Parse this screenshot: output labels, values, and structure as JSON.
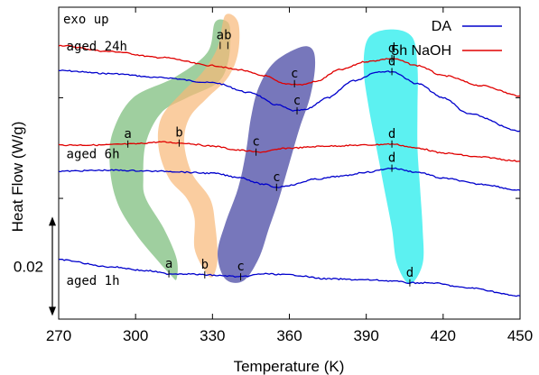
{
  "chart_data": {
    "type": "line",
    "xlabel": "Temperature (K)",
    "ylabel": "Heat Flow (W/g)",
    "xlim": [
      270,
      450
    ],
    "xticks": [
      "270",
      "300",
      "330",
      "360",
      "390",
      "420",
      "450"
    ],
    "ylim": [
      -2.2,
      0.9
    ],
    "scale_bar": {
      "label": "0.02",
      "from": -1.2,
      "to": -2.15
    },
    "corner_note": "exo up",
    "legend": {
      "placement": "top-right",
      "entries": [
        {
          "label": "DA",
          "color": "#0000cc"
        },
        {
          "label": "5h NaOH",
          "color": "#e00000"
        }
      ]
    },
    "series": [
      {
        "name": "DA",
        "group": "aged 24h",
        "color": "#0000cc",
        "x": [
          270,
          290,
          310,
          330,
          345,
          355,
          362,
          366,
          375,
          385,
          395,
          400,
          410,
          420,
          430,
          450
        ],
        "y": [
          0.27,
          0.24,
          0.2,
          0.15,
          0.05,
          -0.07,
          -0.13,
          -0.12,
          0.0,
          0.17,
          0.26,
          0.26,
          0.14,
          0.0,
          -0.16,
          -0.33
        ]
      },
      {
        "name": "5h NaOH",
        "group": "aged 24h",
        "color": "#e00000",
        "x": [
          270,
          290,
          310,
          330,
          340,
          350,
          358,
          365,
          370,
          380,
          390,
          400,
          410,
          420,
          435,
          450
        ],
        "y": [
          0.52,
          0.46,
          0.4,
          0.32,
          0.28,
          0.22,
          0.14,
          0.13,
          0.16,
          0.28,
          0.36,
          0.39,
          0.32,
          0.22,
          0.12,
          0.02
        ]
      },
      {
        "name": "5h NaOH",
        "group": "aged 6h",
        "color": "#e00000",
        "x": [
          270,
          285,
          298,
          310,
          318,
          330,
          340,
          348,
          360,
          375,
          390,
          400,
          410,
          420,
          435,
          450
        ],
        "y": [
          -0.47,
          -0.47,
          -0.46,
          -0.44,
          -0.45,
          -0.48,
          -0.52,
          -0.54,
          -0.5,
          -0.48,
          -0.47,
          -0.46,
          -0.5,
          -0.55,
          -0.59,
          -0.63
        ]
      },
      {
        "name": "DA",
        "group": "aged 6h",
        "color": "#0000cc",
        "x": [
          270,
          290,
          310,
          330,
          340,
          350,
          355,
          360,
          370,
          380,
          390,
          400,
          410,
          420,
          435,
          450
        ],
        "y": [
          -0.73,
          -0.72,
          -0.73,
          -0.75,
          -0.79,
          -0.86,
          -0.89,
          -0.87,
          -0.81,
          -0.78,
          -0.74,
          -0.7,
          -0.74,
          -0.8,
          -0.86,
          -0.92
        ]
      },
      {
        "name": "DA",
        "group": "aged 1h",
        "color": "#0000cc",
        "x": [
          270,
          290,
          305,
          313,
          320,
          327,
          335,
          341,
          350,
          360,
          375,
          390,
          400,
          407,
          415,
          430,
          450
        ],
        "y": [
          -1.61,
          -1.68,
          -1.72,
          -1.75,
          -1.75,
          -1.76,
          -1.77,
          -1.78,
          -1.75,
          -1.76,
          -1.8,
          -1.81,
          -1.82,
          -1.84,
          -1.84,
          -1.89,
          -1.97
        ]
      }
    ],
    "peak_markers": [
      {
        "label": "a",
        "x": 333,
        "y": 0.52
      },
      {
        "label": "b",
        "x": 336,
        "y": 0.52
      },
      {
        "label": "c",
        "x": 362,
        "y": 0.14
      },
      {
        "label": "c",
        "x": 363,
        "y": -0.13
      },
      {
        "label": "d",
        "x": 400,
        "y": 0.39
      },
      {
        "label": "d",
        "x": 400,
        "y": 0.26
      },
      {
        "label": "a",
        "x": 297,
        "y": -0.46
      },
      {
        "label": "b",
        "x": 317,
        "y": -0.45
      },
      {
        "label": "c",
        "x": 347,
        "y": -0.54
      },
      {
        "label": "d",
        "x": 400,
        "y": -0.46
      },
      {
        "label": "c",
        "x": 355,
        "y": -0.89
      },
      {
        "label": "d",
        "x": 400,
        "y": -0.7
      },
      {
        "label": "a",
        "x": 313,
        "y": -1.75
      },
      {
        "label": "b",
        "x": 327,
        "y": -1.76
      },
      {
        "label": "c",
        "x": 341,
        "y": -1.78
      },
      {
        "label": "d",
        "x": 407,
        "y": -1.84
      }
    ],
    "group_labels": [
      {
        "text": "aged 24h",
        "x": 273,
        "y": 0.47
      },
      {
        "text": "aged 6h",
        "x": 273,
        "y": -0.6
      },
      {
        "text": "aged 1h",
        "x": 273,
        "y": -1.86
      }
    ],
    "highlight_regions": [
      {
        "label": "a",
        "color": "#7fbf7f",
        "opacity": 0.75,
        "path": [
          [
            331,
            0.75
          ],
          [
            328,
            0.45
          ],
          [
            315,
            0.2
          ],
          [
            299,
            0.0
          ],
          [
            291,
            -0.35
          ],
          [
            290,
            -0.7
          ],
          [
            293,
            -1.05
          ],
          [
            300,
            -1.35
          ],
          [
            308,
            -1.6
          ],
          [
            314,
            -1.77
          ],
          [
            316,
            -1.8
          ],
          [
            316,
            -1.6
          ],
          [
            311,
            -1.3
          ],
          [
            304,
            -1.0
          ],
          [
            303,
            -0.8
          ],
          [
            304,
            -0.45
          ],
          [
            310,
            -0.15
          ],
          [
            320,
            0.0
          ],
          [
            332,
            0.15
          ],
          [
            336,
            0.35
          ],
          [
            337,
            0.6
          ],
          [
            336,
            0.75
          ]
        ]
      },
      {
        "label": "b",
        "color": "#f8b878",
        "opacity": 0.7,
        "path": [
          [
            335,
            0.82
          ],
          [
            332,
            0.5
          ],
          [
            326,
            0.25
          ],
          [
            318,
            0.05
          ],
          [
            310,
            -0.2
          ],
          [
            309,
            -0.5
          ],
          [
            313,
            -0.8
          ],
          [
            320,
            -1.0
          ],
          [
            323,
            -1.2
          ],
          [
            323,
            -1.5
          ],
          [
            327,
            -1.72
          ],
          [
            330,
            -1.78
          ],
          [
            332,
            -1.6
          ],
          [
            331,
            -1.25
          ],
          [
            329,
            -1.0
          ],
          [
            322,
            -0.75
          ],
          [
            319,
            -0.45
          ],
          [
            321,
            -0.2
          ],
          [
            328,
            0.0
          ],
          [
            336,
            0.2
          ],
          [
            340,
            0.45
          ],
          [
            340,
            0.75
          ]
        ]
      },
      {
        "label": "c",
        "color": "#5555aa",
        "opacity": 0.8,
        "path": [
          [
            364,
            0.5
          ],
          [
            354,
            0.35
          ],
          [
            348,
            0.1
          ],
          [
            345,
            -0.2
          ],
          [
            343,
            -0.55
          ],
          [
            340,
            -0.9
          ],
          [
            335,
            -1.25
          ],
          [
            332,
            -1.55
          ],
          [
            335,
            -1.8
          ],
          [
            342,
            -1.82
          ],
          [
            348,
            -1.6
          ],
          [
            352,
            -1.3
          ],
          [
            356,
            -1.0
          ],
          [
            360,
            -0.65
          ],
          [
            364,
            -0.3
          ],
          [
            368,
            0.0
          ],
          [
            370,
            0.3
          ],
          [
            369,
            0.48
          ]
        ]
      },
      {
        "label": "d",
        "color": "#33eeee",
        "opacity": 0.8,
        "path": [
          [
            400,
            0.68
          ],
          [
            391,
            0.6
          ],
          [
            389,
            0.3
          ],
          [
            391,
            -0.1
          ],
          [
            394,
            -0.5
          ],
          [
            397,
            -0.9
          ],
          [
            400,
            -1.3
          ],
          [
            402,
            -1.65
          ],
          [
            407,
            -1.85
          ],
          [
            412,
            -1.65
          ],
          [
            412,
            -1.3
          ],
          [
            411,
            -0.9
          ],
          [
            410,
            -0.5
          ],
          [
            410,
            -0.1
          ],
          [
            410,
            0.3
          ],
          [
            408,
            0.6
          ]
        ]
      }
    ]
  }
}
